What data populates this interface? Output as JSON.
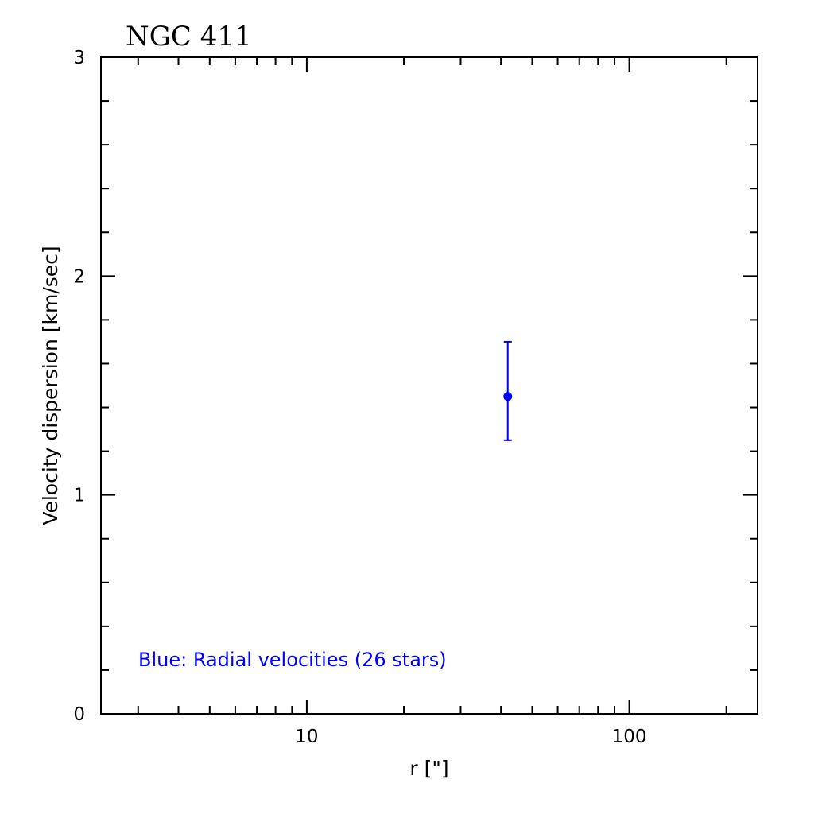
{
  "chart_data": {
    "type": "scatter",
    "title": "NGC 411",
    "xlabel": "r [\"]",
    "ylabel": "Velocity dispersion [km/sec]",
    "xscale": "log",
    "xlim": [
      2.3,
      250
    ],
    "ylim": [
      0,
      3
    ],
    "x_ticks": [
      {
        "value": 10,
        "label": "10"
      },
      {
        "value": 100,
        "label": "100"
      }
    ],
    "y_ticks": [
      {
        "value": 0,
        "label": "0"
      },
      {
        "value": 1,
        "label": "1"
      },
      {
        "value": 2,
        "label": "2"
      },
      {
        "value": 3,
        "label": "3"
      }
    ],
    "grid": false,
    "series": [
      {
        "color": "#0000ff",
        "points": [
          {
            "x": 42,
            "y": 1.45,
            "y_err_low": 0.2,
            "y_err_high": 0.25
          }
        ]
      }
    ],
    "annotation": {
      "text": "Blue: Radial velocities (26 stars)",
      "color": "#0000ff"
    }
  }
}
